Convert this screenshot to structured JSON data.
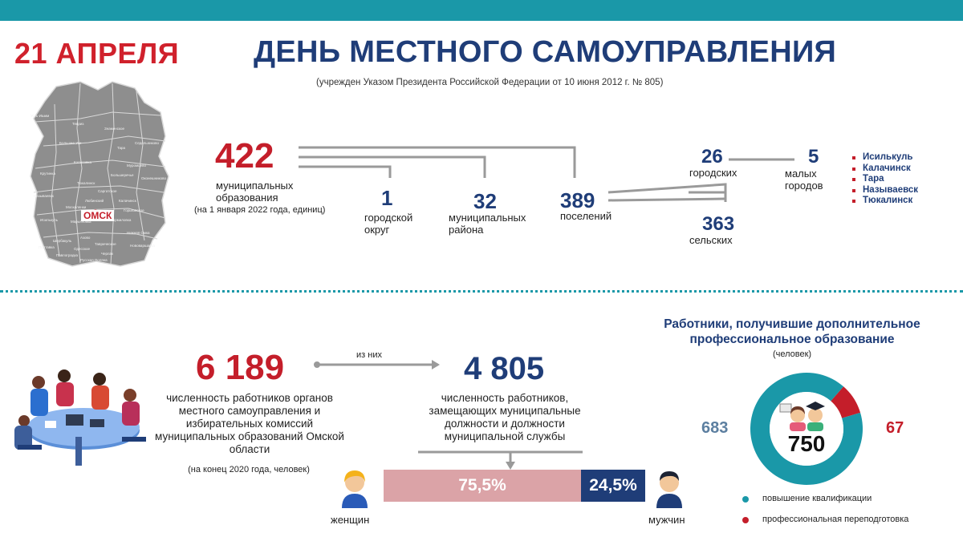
{
  "header": {
    "date": "21 АПРЕЛЯ",
    "title": "ДЕНЬ МЕСТНОГО САМОУПРАВЛЕНИЯ",
    "subtitle": "(учрежден Указом Президента Российской Федерации от 10 июня 2012 г. № 805)"
  },
  "map": {
    "city_label": "ОМСК",
    "district_names": [
      "Усть-Ишим",
      "Тевриз",
      "Знаменское",
      "Тара",
      "Седельниково",
      "Большие Уки",
      "Крутинка",
      "Колосовка",
      "Муромцево",
      "Тюкалинск",
      "Большеречье",
      "Называевск",
      "Саргатское",
      "Калачинск",
      "Москаленки",
      "Любинский",
      "Горьковское",
      "Кормиловка",
      "Исилькуль",
      "Марьяновка",
      "Нижняя Омка",
      "Азово",
      "Шербакуль",
      "Полтавка",
      "Одесское",
      "Таврическое",
      "Павлоградка",
      "Черлак",
      "Русская Поляна",
      "Нововаршавка",
      "Оконешниково"
    ]
  },
  "structure": {
    "total_value": "422",
    "total_label": "муниципальных образования",
    "total_note": "(на 1 января 2022 года, единиц)",
    "district_city_value": "1",
    "district_city_label": "городской округ",
    "districts_value": "32",
    "districts_label": "муниципальных района",
    "settlements_value": "389",
    "settlements_label": "поселений",
    "urban_value": "26",
    "urban_label": "городских",
    "rural_value": "363",
    "rural_label": "сельских",
    "small_towns_value": "5",
    "small_towns_label": "малых городов",
    "small_towns": [
      "Исилькуль",
      "Калачинск",
      "Тара",
      "Называевск",
      "Тюкалинск"
    ]
  },
  "employees": {
    "total_value": "6 189",
    "total_label": "численность работников органов местного самоуправления и избирательных комиссий муниципальных образований Омской области",
    "total_note": "(на конец 2020 года, человек)",
    "of_them_label": "из них",
    "municipal_value": "4 805",
    "municipal_label": "численность работников, замещающих муниципальные должности и должности муниципальной службы"
  },
  "gender": {
    "women_percent": 75.5,
    "women_label_value": "75,5%",
    "men_percent": 24.5,
    "men_label_value": "24,5%",
    "women_label": "женщин",
    "men_label": "мужчин"
  },
  "training": {
    "title": "Работники, получившие дополнительное профессиональное образование",
    "unit": "(человек)",
    "total": "750",
    "qualification_value": 683,
    "qualification_label_value": "683",
    "retraining_value": 67,
    "retraining_label_value": "67",
    "legend_qualification": "повышение квалификации",
    "legend_retraining": "профессиональная переподготовка"
  },
  "colors": {
    "accent_teal": "#1a98a8",
    "accent_red": "#c41e2a",
    "brand_blue": "#1f3d78",
    "women_bar": "#dba3a7",
    "men_bar": "#1f3d78"
  }
}
